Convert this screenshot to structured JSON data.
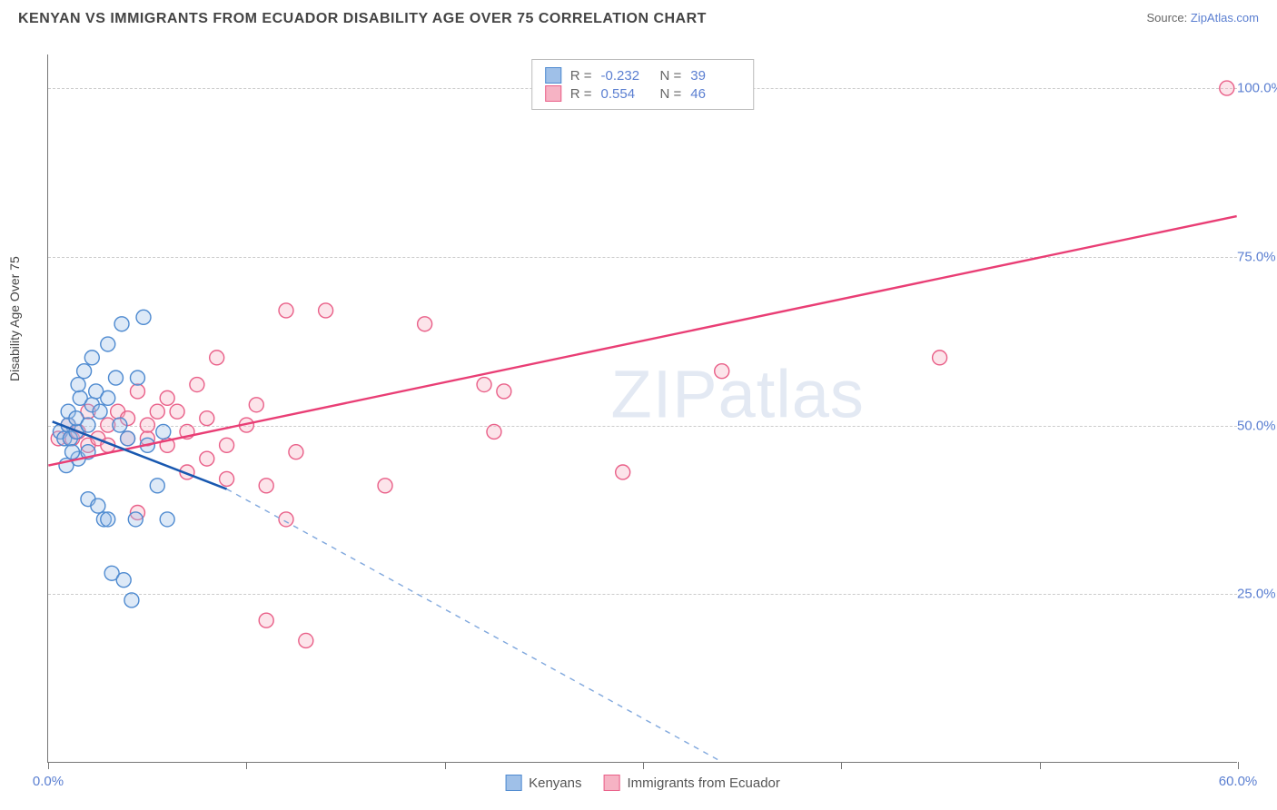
{
  "header": {
    "title": "KENYAN VS IMMIGRANTS FROM ECUADOR DISABILITY AGE OVER 75 CORRELATION CHART",
    "source_prefix": "Source: ",
    "source_link": "ZipAtlas.com"
  },
  "ylabel": "Disability Age Over 75",
  "watermark": {
    "part1": "ZIP",
    "part2": "atlas"
  },
  "chart": {
    "type": "scatter",
    "xlim": [
      0,
      60
    ],
    "ylim": [
      0,
      105
    ],
    "background_color": "#ffffff",
    "grid_color": "#cccccc",
    "grid_dash": "4,4",
    "y_gridlines": [
      25,
      50,
      75,
      100
    ],
    "y_tick_labels": [
      "25.0%",
      "50.0%",
      "75.0%",
      "100.0%"
    ],
    "x_ticks": [
      0,
      10,
      20,
      30,
      40,
      50,
      60
    ],
    "x_tick_labels_shown": {
      "0": "0.0%",
      "60": "60.0%"
    },
    "marker_radius": 8,
    "marker_fill_opacity": 0.35,
    "marker_stroke_width": 1.4
  },
  "stat_legend": {
    "rows": [
      {
        "series_key": "blue",
        "r_label": "R =",
        "r": "-0.232",
        "n_label": "N =",
        "n": "39"
      },
      {
        "series_key": "pink",
        "r_label": "R =",
        "r": "0.554",
        "n_label": "N =",
        "n": "46"
      }
    ]
  },
  "bottom_legend": {
    "items": [
      {
        "series_key": "blue",
        "label": "Kenyans"
      },
      {
        "series_key": "pink",
        "label": "Immigrants from Ecuador"
      }
    ]
  },
  "series": {
    "blue": {
      "fill": "#9fc0e8",
      "stroke": "#4e8ad0",
      "trend_solid": {
        "x1": 0.2,
        "y1": 50.5,
        "x2": 9,
        "y2": 40.5,
        "color": "#1858b0",
        "width": 2.5
      },
      "trend_dashed": {
        "x1": 9,
        "y1": 40.5,
        "x2": 34,
        "y2": 0,
        "color": "#7fa7dd",
        "width": 1.4,
        "dash": "6,6"
      },
      "points": [
        {
          "x": 0.6,
          "y": 49
        },
        {
          "x": 0.8,
          "y": 48
        },
        {
          "x": 1.0,
          "y": 50
        },
        {
          "x": 1.0,
          "y": 52
        },
        {
          "x": 1.1,
          "y": 48
        },
        {
          "x": 1.4,
          "y": 49
        },
        {
          "x": 1.4,
          "y": 51
        },
        {
          "x": 1.6,
          "y": 54
        },
        {
          "x": 1.8,
          "y": 58
        },
        {
          "x": 1.5,
          "y": 56
        },
        {
          "x": 2.0,
          "y": 50
        },
        {
          "x": 2.2,
          "y": 53
        },
        {
          "x": 2.4,
          "y": 55
        },
        {
          "x": 2.2,
          "y": 60
        },
        {
          "x": 2.6,
          "y": 52
        },
        {
          "x": 3.0,
          "y": 54
        },
        {
          "x": 3.0,
          "y": 62
        },
        {
          "x": 3.4,
          "y": 57
        },
        {
          "x": 3.6,
          "y": 50
        },
        {
          "x": 3.7,
          "y": 65
        },
        {
          "x": 4.0,
          "y": 48
        },
        {
          "x": 1.5,
          "y": 45
        },
        {
          "x": 2.0,
          "y": 46
        },
        {
          "x": 2.0,
          "y": 39
        },
        {
          "x": 2.5,
          "y": 38
        },
        {
          "x": 2.8,
          "y": 36
        },
        {
          "x": 3.0,
          "y": 36
        },
        {
          "x": 3.2,
          "y": 28
        },
        {
          "x": 3.8,
          "y": 27
        },
        {
          "x": 4.2,
          "y": 24
        },
        {
          "x": 4.4,
          "y": 36
        },
        {
          "x": 5.0,
          "y": 47
        },
        {
          "x": 5.5,
          "y": 41
        },
        {
          "x": 6.0,
          "y": 36
        },
        {
          "x": 5.8,
          "y": 49
        },
        {
          "x": 4.5,
          "y": 57
        },
        {
          "x": 4.8,
          "y": 66
        },
        {
          "x": 1.2,
          "y": 46
        },
        {
          "x": 0.9,
          "y": 44
        }
      ]
    },
    "pink": {
      "fill": "#f6b3c4",
      "stroke": "#e95f88",
      "trend_solid": {
        "x1": 0,
        "y1": 44,
        "x2": 60,
        "y2": 81,
        "color": "#e93e75",
        "width": 2.4
      },
      "points": [
        {
          "x": 0.5,
          "y": 48
        },
        {
          "x": 1.0,
          "y": 50
        },
        {
          "x": 1.2,
          "y": 48
        },
        {
          "x": 1.5,
          "y": 49
        },
        {
          "x": 2.0,
          "y": 47
        },
        {
          "x": 2.0,
          "y": 52
        },
        {
          "x": 2.5,
          "y": 48
        },
        {
          "x": 3.0,
          "y": 50
        },
        {
          "x": 3.0,
          "y": 47
        },
        {
          "x": 3.5,
          "y": 52
        },
        {
          "x": 4.0,
          "y": 48
        },
        {
          "x": 4.0,
          "y": 51
        },
        {
          "x": 4.5,
          "y": 55
        },
        {
          "x": 5.0,
          "y": 48
        },
        {
          "x": 5.0,
          "y": 50
        },
        {
          "x": 5.5,
          "y": 52
        },
        {
          "x": 6.0,
          "y": 54
        },
        {
          "x": 6.0,
          "y": 47
        },
        {
          "x": 6.5,
          "y": 52
        },
        {
          "x": 7.0,
          "y": 49
        },
        {
          "x": 7.0,
          "y": 43
        },
        {
          "x": 7.5,
          "y": 56
        },
        {
          "x": 8.0,
          "y": 51
        },
        {
          "x": 8.0,
          "y": 45
        },
        {
          "x": 8.5,
          "y": 60
        },
        {
          "x": 9.0,
          "y": 47
        },
        {
          "x": 9.0,
          "y": 42
        },
        {
          "x": 10.0,
          "y": 50
        },
        {
          "x": 10.5,
          "y": 53
        },
        {
          "x": 11.0,
          "y": 41
        },
        {
          "x": 11.0,
          "y": 21
        },
        {
          "x": 12.0,
          "y": 67
        },
        {
          "x": 12.0,
          "y": 36
        },
        {
          "x": 12.5,
          "y": 46
        },
        {
          "x": 13.0,
          "y": 18
        },
        {
          "x": 14.0,
          "y": 67
        },
        {
          "x": 17.0,
          "y": 41
        },
        {
          "x": 19.0,
          "y": 65
        },
        {
          "x": 22.0,
          "y": 56
        },
        {
          "x": 22.5,
          "y": 49
        },
        {
          "x": 23.0,
          "y": 55
        },
        {
          "x": 29.0,
          "y": 43
        },
        {
          "x": 34.0,
          "y": 58
        },
        {
          "x": 45.0,
          "y": 60
        },
        {
          "x": 59.5,
          "y": 100
        },
        {
          "x": 4.5,
          "y": 37
        }
      ]
    }
  }
}
